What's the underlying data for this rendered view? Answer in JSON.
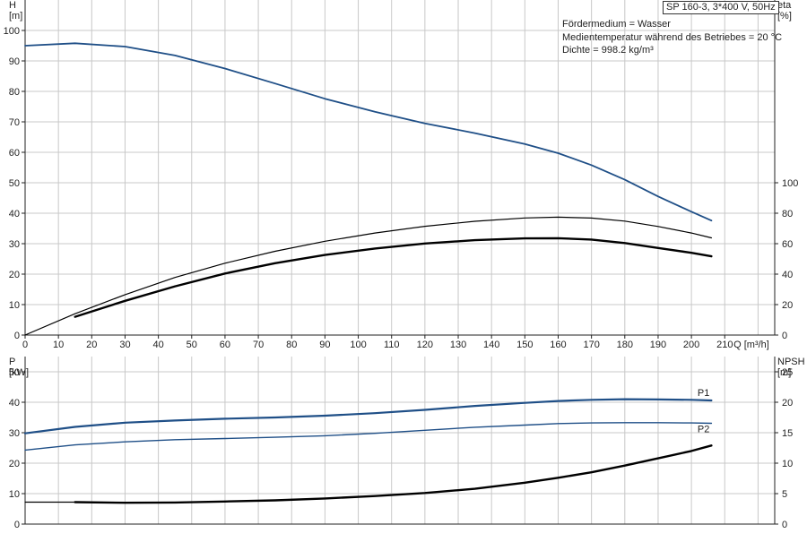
{
  "header": {
    "pump_label": "SP 160-3, 3*400 V, 50Hz",
    "info_lines": [
      "Fördermedium = Wasser",
      "Medientemperatur während des Betriebes = 20 °C",
      "Dichte = 998.2 kg/m³"
    ]
  },
  "chart_data": [
    {
      "type": "line",
      "panel": "top",
      "axes": {
        "x": {
          "label": "Q",
          "unit": "[m³/h]",
          "range": [
            0,
            225
          ],
          "ticks": [
            0,
            10,
            20,
            30,
            40,
            50,
            60,
            70,
            80,
            90,
            100,
            110,
            120,
            130,
            140,
            150,
            160,
            170,
            180,
            190,
            200,
            210
          ]
        },
        "left_y": {
          "label": "H",
          "unit": "[m]",
          "range": [
            0,
            110
          ],
          "ticks": [
            0,
            10,
            20,
            30,
            40,
            50,
            60,
            70,
            80,
            90,
            100
          ]
        },
        "right_y": {
          "label": "eta",
          "unit": "[%]",
          "range": [
            0,
            220
          ],
          "ticks": [
            0,
            20,
            40,
            60,
            80,
            100
          ]
        }
      },
      "grid": true,
      "series": [
        {
          "axis": "left",
          "color": "#1f4f87",
          "x": [
            0,
            15,
            30,
            45,
            60,
            75,
            90,
            105,
            120,
            135,
            150,
            160,
            170,
            180,
            190,
            200,
            206
          ],
          "values": [
            95,
            95.8,
            94.7,
            91.8,
            87.5,
            82.6,
            77.6,
            73.3,
            69.5,
            66.3,
            62.7,
            59.7,
            55.8,
            51.0,
            45.5,
            40.5,
            37.6
          ]
        },
        {
          "axis": "right",
          "color": "#000000",
          "width": 1.2,
          "x": [
            0,
            15,
            30,
            45,
            60,
            75,
            90,
            105,
            120,
            135,
            150,
            160,
            170,
            180,
            190,
            200,
            206
          ],
          "values": [
            0,
            14,
            26.5,
            37.8,
            47.2,
            55,
            61.6,
            67,
            71.4,
            74.7,
            76.9,
            77.4,
            76.8,
            74.8,
            71.3,
            67,
            63.8
          ]
        },
        {
          "axis": "right",
          "color": "#000000",
          "width": 2.4,
          "x": [
            15,
            30,
            45,
            60,
            75,
            90,
            105,
            120,
            135,
            150,
            160,
            170,
            180,
            190,
            200,
            206
          ],
          "values": [
            12,
            22.5,
            32,
            40.4,
            47.2,
            52.6,
            56.8,
            60.1,
            62.3,
            63.5,
            63.6,
            62.7,
            60.4,
            57.2,
            54,
            51.7
          ]
        }
      ]
    },
    {
      "type": "line",
      "panel": "bottom",
      "axes": {
        "x": {
          "range": [
            0,
            225
          ]
        },
        "left_y": {
          "label": "P",
          "unit": "[kW]",
          "range": [
            0,
            55
          ],
          "ticks": [
            0,
            10,
            20,
            30,
            40,
            50
          ]
        },
        "right_y": {
          "label": "NPSH",
          "unit": "[m]",
          "range": [
            0,
            27.5
          ],
          "ticks": [
            0,
            5,
            10,
            15,
            20,
            25
          ]
        }
      },
      "grid": true,
      "series": [
        {
          "name": "P1",
          "axis": "left",
          "color": "#1f4f87",
          "width": 2.2,
          "x": [
            0,
            15,
            30,
            45,
            60,
            75,
            90,
            105,
            120,
            135,
            150,
            160,
            170,
            180,
            190,
            200,
            206
          ],
          "values": [
            29.8,
            31.9,
            33.3,
            34.0,
            34.6,
            35.0,
            35.6,
            36.4,
            37.5,
            38.8,
            39.8,
            40.4,
            40.8,
            41.0,
            40.9,
            40.8,
            40.6
          ]
        },
        {
          "name": "P2",
          "axis": "left",
          "color": "#1f4f87",
          "width": 1.4,
          "x": [
            0,
            15,
            30,
            45,
            60,
            75,
            90,
            105,
            120,
            135,
            150,
            160,
            170,
            180,
            190,
            200,
            206
          ],
          "values": [
            24.3,
            26.0,
            27.0,
            27.7,
            28.1,
            28.5,
            29.0,
            29.8,
            30.8,
            31.8,
            32.5,
            33.0,
            33.2,
            33.3,
            33.3,
            33.2,
            33.1
          ]
        },
        {
          "axis": "right",
          "color": "#000000",
          "width": 1.2,
          "x": [
            0,
            15
          ],
          "values": [
            3.6,
            3.6
          ]
        },
        {
          "axis": "right",
          "color": "#000000",
          "width": 2.4,
          "x": [
            15,
            30,
            45,
            60,
            75,
            90,
            105,
            120,
            135,
            150,
            160,
            170,
            180,
            190,
            200,
            206
          ],
          "values": [
            3.6,
            3.5,
            3.55,
            3.7,
            3.9,
            4.2,
            4.6,
            5.1,
            5.8,
            6.8,
            7.6,
            8.5,
            9.6,
            10.8,
            12.0,
            12.9
          ]
        }
      ]
    }
  ]
}
